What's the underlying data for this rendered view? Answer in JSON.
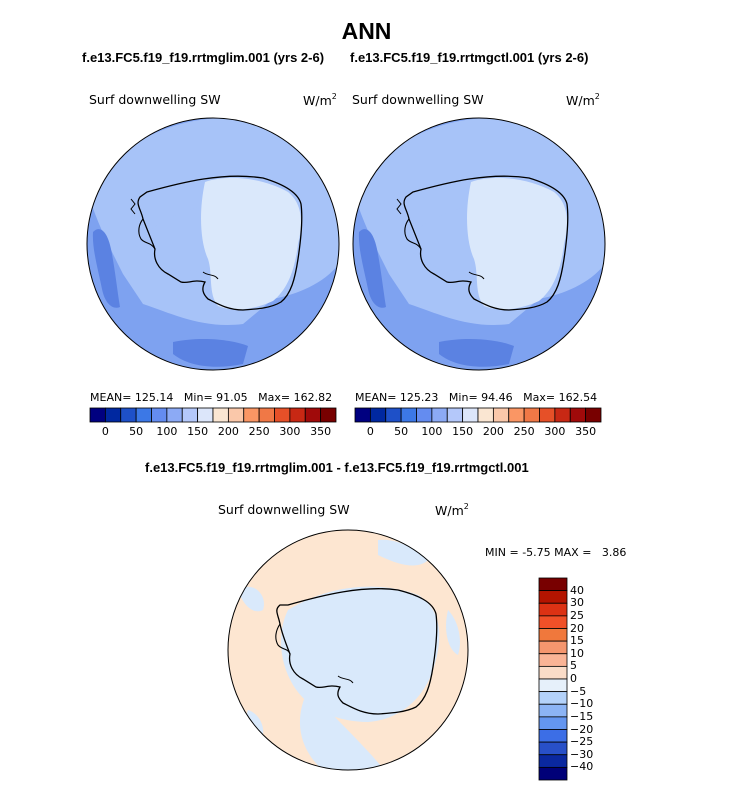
{
  "title": "ANN",
  "panels": [
    {
      "case": "f.e13.FC5.f19_f19.rrtmglim.001 (yrs 2-6)",
      "variable": "Surf downwelling SW",
      "units": "W/m",
      "units_exp": "2",
      "mean": "125.14",
      "min": "91.05",
      "max": "162.82"
    },
    {
      "case": "f.e13.FC5.f19_f19.rrtmgctl.001 (yrs 2-6)",
      "variable": "Surf downwelling SW",
      "units": "W/m",
      "units_exp": "2",
      "mean": "125.23",
      "min": "94.46",
      "max": "162.54"
    }
  ],
  "stat_labels": {
    "mean": "MEAN=",
    "min": "Min=",
    "max": "Max="
  },
  "colorbar": {
    "ticks": [
      "0",
      "50",
      "100",
      "150",
      "200",
      "250",
      "300",
      "350"
    ],
    "colors": [
      "#000080",
      "#0028a0",
      "#1e50c8",
      "#3c78e6",
      "#648cf0",
      "#8caaf5",
      "#b4c8fa",
      "#dce6fa",
      "#fae6d2",
      "#fac8aa",
      "#fa9664",
      "#f07846",
      "#e65028",
      "#c82814",
      "#a00a0a",
      "#780000"
    ]
  },
  "diff": {
    "title": "f.e13.FC5.f19_f19.rrtmglim.001 - f.e13.FC5.f19_f19.rrtmgctl.001",
    "variable": "Surf downwelling SW",
    "units": "W/m",
    "units_exp": "2",
    "min_label": "MIN =",
    "min": "-5.75",
    "max_label": "MAX =",
    "max": "3.86",
    "colorbar": {
      "ticks": [
        "40",
        "30",
        "25",
        "20",
        "15",
        "10",
        "5",
        "0",
        "−5",
        "−10",
        "−15",
        "−20",
        "−25",
        "−30",
        "−40"
      ],
      "colors": [
        "#780000",
        "#b41400",
        "#dc3214",
        "#f05028",
        "#f0783c",
        "#f5966e",
        "#fab496",
        "#fadcc8",
        "#e6f0fa",
        "#b4d2fa",
        "#8cb4f5",
        "#6496f0",
        "#3c6ee6",
        "#2850c8",
        "#0a28a0",
        "#000078"
      ]
    }
  },
  "field_colors": {
    "ocean_mid": "#7ea2f0",
    "ocean_light": "#a7c3f8",
    "ocean_dark": "#5b82e2",
    "ice_light": "#dae8fb",
    "diff_pos": "#fde6d1",
    "diff_neg": "#d9e9fb"
  }
}
